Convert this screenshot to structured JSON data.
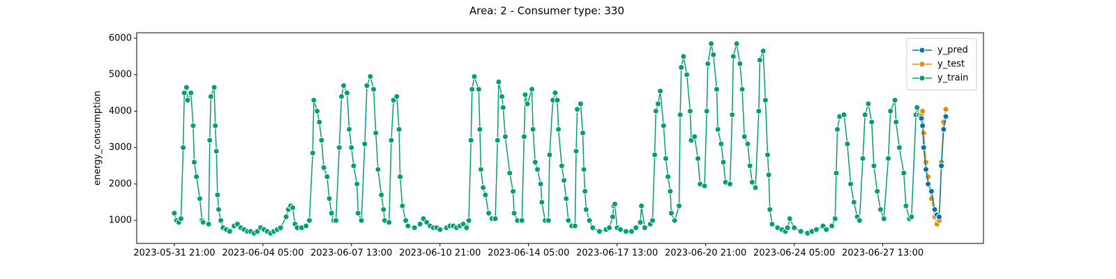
{
  "chart_data": {
    "type": "line",
    "title": "Area: 2 - Consumer type: 330",
    "ylabel": "energy_consumption",
    "xlim": [
      "2023-05-30 11:00",
      "2023-07-01 08:00"
    ],
    "xticks": [
      "2023-05-31 21:00",
      "2023-06-04 05:00",
      "2023-06-07 13:00",
      "2023-06-10 21:00",
      "2023-06-14 05:00",
      "2023-06-17 13:00",
      "2023-06-20 21:00",
      "2023-06-24 05:00",
      "2023-06-27 13:00"
    ],
    "ylim": [
      370,
      6150
    ],
    "yticks": [
      1000,
      2000,
      3000,
      4000,
      5000,
      6000
    ],
    "legend": "upper right",
    "series": [
      {
        "name": "y_pred",
        "color": "#0173b2",
        "x": [
          "2023-06-29 00:00",
          "2023-06-29 01:00",
          "2023-06-29 02:00",
          "2023-06-29 04:00",
          "2023-06-29 06:00",
          "2023-06-29 09:00",
          "2023-06-29 12:00",
          "2023-06-29 14:00",
          "2023-06-29 16:00",
          "2023-06-29 18:00",
          "2023-06-29 20:00",
          "2023-06-29 22:00"
        ],
        "values": [
          3800,
          3600,
          3000,
          2400,
          2000,
          1800,
          1300,
          1150,
          1100,
          2500,
          3500,
          3850
        ]
      },
      {
        "name": "y_test",
        "color": "#de8f05",
        "x": [
          "2023-06-29 00:00",
          "2023-06-29 01:00",
          "2023-06-29 02:00",
          "2023-06-29 04:00",
          "2023-06-29 06:00",
          "2023-06-29 09:00",
          "2023-06-29 12:00",
          "2023-06-29 14:00",
          "2023-06-29 16:00",
          "2023-06-29 18:00",
          "2023-06-29 20:00",
          "2023-06-29 22:00"
        ],
        "values": [
          3900,
          4000,
          3400,
          2600,
          2200,
          1600,
          1100,
          900,
          1000,
          2600,
          3700,
          4050
        ]
      },
      {
        "name": "y_train",
        "color": "#029e73",
        "x": [
          "2023-05-31 21:00",
          "2023-05-31 23:00",
          "2023-06-01 01:00",
          "2023-06-01 03:00",
          "2023-06-01 05:00",
          "2023-06-01 06:00",
          "2023-06-01 08:00",
          "2023-06-01 09:00",
          "2023-06-01 12:00",
          "2023-06-01 14:00",
          "2023-06-01 15:00",
          "2023-06-01 17:00",
          "2023-06-01 20:00",
          "2023-06-01 22:00",
          "2023-06-01 23:00",
          "2023-06-02 04:00",
          "2023-06-02 05:00",
          "2023-06-02 06:00",
          "2023-06-02 09:00",
          "2023-06-02 10:00",
          "2023-06-02 11:00",
          "2023-06-02 12:00",
          "2023-06-02 13:00",
          "2023-06-02 15:00",
          "2023-06-02 17:00",
          "2023-06-02 20:00",
          "2023-06-02 23:00",
          "2023-06-03 03:00",
          "2023-06-03 06:00",
          "2023-06-03 09:00",
          "2023-06-03 12:00",
          "2023-06-03 15:00",
          "2023-06-03 18:00",
          "2023-06-03 21:00",
          "2023-06-04 00:00",
          "2023-06-04 03:00",
          "2023-06-04 06:00",
          "2023-06-04 09:00",
          "2023-06-04 12:00",
          "2023-06-04 15:00",
          "2023-06-04 18:00",
          "2023-06-04 21:00",
          "2023-06-05 02:00",
          "2023-06-05 04:00",
          "2023-06-05 06:00",
          "2023-06-05 08:00",
          "2023-06-05 10:00",
          "2023-06-05 12:00",
          "2023-06-05 16:00",
          "2023-06-05 20:00",
          "2023-06-05 23:00",
          "2023-06-06 02:00",
          "2023-06-06 03:00",
          "2023-06-06 06:00",
          "2023-06-06 08:00",
          "2023-06-06 10:00",
          "2023-06-06 12:00",
          "2023-06-06 15:00",
          "2023-06-06 17:00",
          "2023-06-06 19:00",
          "2023-06-06 21:00",
          "2023-06-06 23:00",
          "2023-06-07 02:00",
          "2023-06-07 04:00",
          "2023-06-07 06:00",
          "2023-06-07 09:00",
          "2023-06-07 11:00",
          "2023-06-07 13:00",
          "2023-06-07 15:00",
          "2023-06-07 18:00",
          "2023-06-07 19:00",
          "2023-06-07 22:00",
          "2023-06-08 01:00",
          "2023-06-08 03:00",
          "2023-06-08 06:00",
          "2023-06-08 09:00",
          "2023-06-08 11:00",
          "2023-06-08 13:00",
          "2023-06-08 16:00",
          "2023-06-08 18:00",
          "2023-06-08 19:00",
          "2023-06-08 23:00",
          "2023-06-09 01:00",
          "2023-06-09 03:00",
          "2023-06-09 06:00",
          "2023-06-09 08:00",
          "2023-06-09 09:00",
          "2023-06-09 11:00",
          "2023-06-09 14:00",
          "2023-06-09 16:00",
          "2023-06-09 22:00",
          "2023-06-10 03:00",
          "2023-06-10 06:00",
          "2023-06-10 09:00",
          "2023-06-10 12:00",
          "2023-06-10 15:00",
          "2023-06-10 18:00",
          "2023-06-10 21:00",
          "2023-06-11 03:00",
          "2023-06-11 06:00",
          "2023-06-11 09:00",
          "2023-06-11 12:00",
          "2023-06-11 15:00",
          "2023-06-11 18:00",
          "2023-06-11 21:00",
          "2023-06-11 23:00",
          "2023-06-12 01:00",
          "2023-06-12 02:00",
          "2023-06-12 04:00",
          "2023-06-12 08:00",
          "2023-06-12 09:00",
          "2023-06-12 10:00",
          "2023-06-12 12:00",
          "2023-06-12 14:00",
          "2023-06-12 17:00",
          "2023-06-12 20:00",
          "2023-06-12 23:00",
          "2023-06-13 01:00",
          "2023-06-13 02:00",
          "2023-06-13 05:00",
          "2023-06-13 06:00",
          "2023-06-13 08:00",
          "2023-06-13 12:00",
          "2023-06-13 15:00",
          "2023-06-13 16:00",
          "2023-06-13 19:00",
          "2023-06-13 23:00",
          "2023-06-14 01:00",
          "2023-06-14 02:00",
          "2023-06-14 04:00",
          "2023-06-14 08:00",
          "2023-06-14 09:00",
          "2023-06-14 11:00",
          "2023-06-14 13:00",
          "2023-06-14 16:00",
          "2023-06-14 17:00",
          "2023-06-14 20:00",
          "2023-06-14 23:00",
          "2023-06-15 00:00",
          "2023-06-15 03:00",
          "2023-06-15 05:00",
          "2023-06-15 07:00",
          "2023-06-15 08:00",
          "2023-06-15 11:00",
          "2023-06-15 13:00",
          "2023-06-15 15:00",
          "2023-06-15 17:00",
          "2023-06-15 20:00",
          "2023-06-15 23:00",
          "2023-06-16 00:00",
          "2023-06-16 01:00",
          "2023-06-16 04:00",
          "2023-06-16 06:00",
          "2023-06-16 07:00",
          "2023-06-16 08:00",
          "2023-06-16 09:00",
          "2023-06-16 12:00",
          "2023-06-16 15:00",
          "2023-06-16 21:00",
          "2023-06-17 03:00",
          "2023-06-17 06:00",
          "2023-06-17 09:00",
          "2023-06-17 10:00",
          "2023-06-17 11:00",
          "2023-06-17 13:00",
          "2023-06-17 16:00",
          "2023-06-17 21:00",
          "2023-06-18 02:00",
          "2023-06-18 06:00",
          "2023-06-18 10:00",
          "2023-06-18 11:00",
          "2023-06-18 14:00",
          "2023-06-18 19:00",
          "2023-06-18 21:00",
          "2023-06-18 23:00",
          "2023-06-19 00:00",
          "2023-06-19 02:00",
          "2023-06-19 04:00",
          "2023-06-19 07:00",
          "2023-06-19 09:00",
          "2023-06-19 11:00",
          "2023-06-19 13:00",
          "2023-06-19 14:00",
          "2023-06-19 17:00",
          "2023-06-19 21:00",
          "2023-06-19 22:00",
          "2023-06-19 23:00",
          "2023-06-20 01:00",
          "2023-06-20 04:00",
          "2023-06-20 07:00",
          "2023-06-20 08:00",
          "2023-06-20 11:00",
          "2023-06-20 14:00",
          "2023-06-20 16:00",
          "2023-06-20 20:00",
          "2023-06-20 22:00",
          "2023-06-20 23:00",
          "2023-06-21 02:00",
          "2023-06-21 04:00",
          "2023-06-21 07:00",
          "2023-06-21 08:00",
          "2023-06-21 11:00",
          "2023-06-21 13:00",
          "2023-06-21 15:00",
          "2023-06-21 19:00",
          "2023-06-21 21:00",
          "2023-06-21 22:00",
          "2023-06-22 01:00",
          "2023-06-22 04:00",
          "2023-06-22 06:00",
          "2023-06-22 08:00",
          "2023-06-22 11:00",
          "2023-06-22 13:00",
          "2023-06-22 15:00",
          "2023-06-22 18:00",
          "2023-06-22 21:00",
          "2023-06-22 22:00",
          "2023-06-23 01:00",
          "2023-06-23 03:00",
          "2023-06-23 05:00",
          "2023-06-23 06:00",
          "2023-06-23 07:00",
          "2023-06-23 09:00",
          "2023-06-23 14:00",
          "2023-06-23 18:00",
          "2023-06-23 21:00",
          "2023-06-23 23:00",
          "2023-06-24 01:00",
          "2023-06-24 05:00",
          "2023-06-24 11:00",
          "2023-06-24 17:00",
          "2023-06-24 21:00",
          "2023-06-25 01:00",
          "2023-06-25 07:00",
          "2023-06-25 10:00",
          "2023-06-25 15:00",
          "2023-06-25 18:00",
          "2023-06-25 19:00",
          "2023-06-25 20:00",
          "2023-06-25 22:00",
          "2023-06-26 02:00",
          "2023-06-26 05:00",
          "2023-06-26 08:00",
          "2023-06-26 11:00",
          "2023-06-26 14:00",
          "2023-06-26 16:00",
          "2023-06-26 19:00",
          "2023-06-26 21:00",
          "2023-06-27 00:00",
          "2023-06-27 03:00",
          "2023-06-27 05:00",
          "2023-06-27 08:00",
          "2023-06-27 11:00",
          "2023-06-27 14:00",
          "2023-06-27 18:00",
          "2023-06-27 20:00",
          "2023-06-28 00:00",
          "2023-06-28 01:00",
          "2023-06-28 04:00",
          "2023-06-28 08:00",
          "2023-06-28 10:00",
          "2023-06-28 13:00",
          "2023-06-28 15:00",
          "2023-06-28 19:00",
          "2023-06-28 20:00",
          "2023-06-28 22:00"
        ],
        "values": [
          1200,
          1000,
          950,
          1050,
          3000,
          4500,
          4650,
          4300,
          4500,
          3600,
          2600,
          2200,
          1600,
          1000,
          950,
          900,
          3200,
          4400,
          4650,
          3600,
          2900,
          1700,
          1300,
          1000,
          800,
          750,
          700,
          850,
          900,
          800,
          750,
          700,
          700,
          650,
          700,
          800,
          750,
          700,
          650,
          700,
          750,
          800,
          1100,
          1300,
          1400,
          1350,
          900,
          800,
          800,
          850,
          1000,
          2850,
          4300,
          4000,
          3700,
          3200,
          2450,
          2200,
          1600,
          1200,
          1000,
          1000,
          3000,
          4400,
          4700,
          4500,
          3500,
          3000,
          2500,
          2000,
          1200,
          1000,
          3100,
          4700,
          4950,
          4600,
          3400,
          2400,
          1700,
          1300,
          1000,
          950,
          3200,
          4300,
          4400,
          3500,
          2200,
          1400,
          1000,
          850,
          800,
          900,
          1050,
          950,
          850,
          800,
          800,
          750,
          800,
          850,
          850,
          800,
          850,
          900,
          800,
          1000,
          3200,
          4600,
          4950,
          4600,
          3500,
          2400,
          1900,
          1700,
          1200,
          1050,
          1050,
          3200,
          4800,
          4400,
          4100,
          3300,
          2300,
          1800,
          1200,
          1000,
          1000,
          3300,
          4450,
          4200,
          4600,
          3500,
          2600,
          2400,
          2000,
          1500,
          1000,
          1000,
          2800,
          4300,
          4500,
          4300,
          3500,
          2500,
          2100,
          1600,
          1000,
          850,
          850,
          2900,
          4050,
          4200,
          3400,
          2400,
          1800,
          1300,
          1000,
          800,
          700,
          750,
          800,
          1100,
          1400,
          1450,
          800,
          750,
          700,
          700,
          800,
          950,
          1400,
          800,
          900,
          1000,
          2800,
          4000,
          4200,
          4550,
          3600,
          2700,
          2200,
          1800,
          1200,
          1000,
          1400,
          3900,
          5200,
          5500,
          5000,
          4000,
          3200,
          3300,
          2700,
          2000,
          1950,
          4000,
          5300,
          5850,
          5550,
          4600,
          3500,
          3100,
          2600,
          2050,
          2000,
          3900,
          5500,
          5850,
          5300,
          4600,
          3300,
          3100,
          2500,
          2050,
          1900,
          4000,
          5400,
          5650,
          4300,
          2800,
          2250,
          1300,
          900,
          800,
          750,
          700,
          800,
          1050,
          800,
          700,
          650,
          700,
          750,
          850,
          750,
          850,
          1050,
          2300,
          3500,
          3850,
          3900,
          3100,
          2000,
          1500,
          1100,
          1000,
          2700,
          3900,
          4200,
          3700,
          2500,
          1800,
          1300,
          1050,
          2700,
          4000,
          4300,
          3700,
          3000,
          2300,
          1400,
          1050,
          1100,
          3900,
          4100,
          3900
        ]
      }
    ]
  }
}
